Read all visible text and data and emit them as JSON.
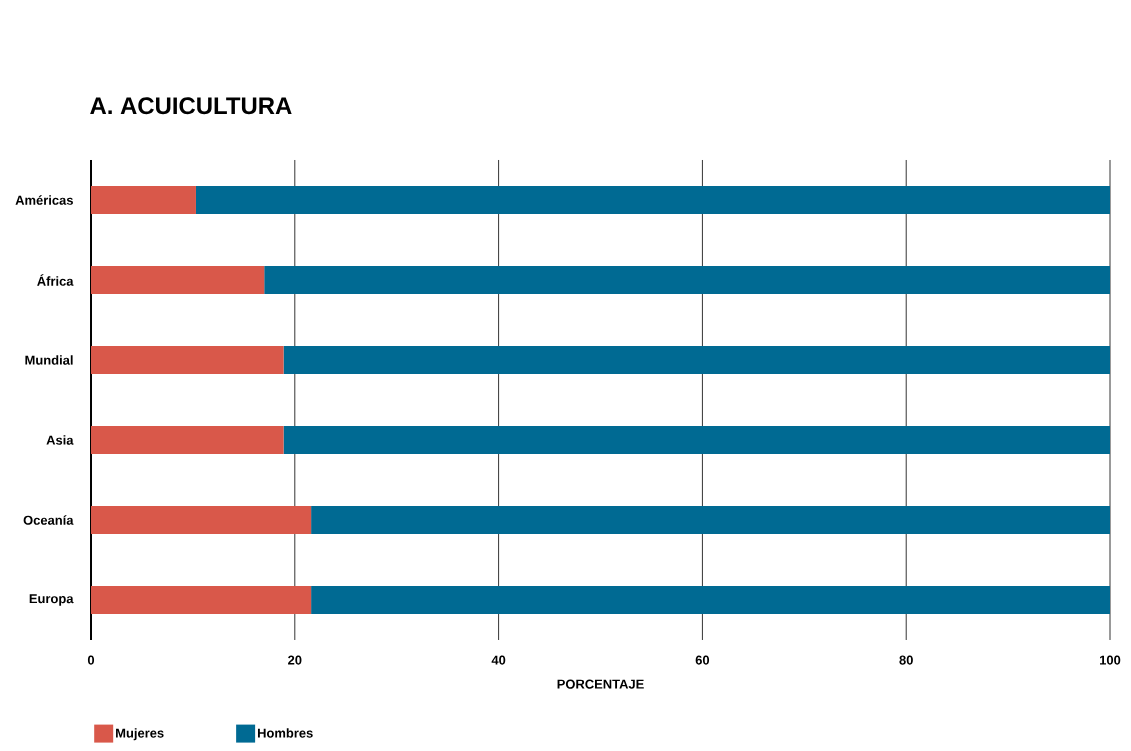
{
  "chart_data": {
    "type": "bar",
    "orientation": "horizontal",
    "stacked": true,
    "title": "A. ACUICULTURA",
    "xlabel": "PORCENTAJE",
    "categories": [
      "Américas",
      "África",
      "Mundial",
      "Asia",
      "Oceanía",
      "Europa"
    ],
    "series": [
      {
        "name": "Mujeres",
        "color": "#d9584a",
        "values": [
          10.3,
          17.0,
          18.9,
          18.9,
          21.6,
          21.6
        ]
      },
      {
        "name": "Hombres",
        "color": "#006a93",
        "values": [
          89.7,
          83.0,
          81.1,
          81.1,
          78.4,
          78.4
        ]
      }
    ],
    "xlim": [
      0,
      100
    ],
    "xticks": [
      0,
      20,
      40,
      60,
      80,
      100
    ],
    "grid": "x",
    "legend": "bottom left"
  }
}
